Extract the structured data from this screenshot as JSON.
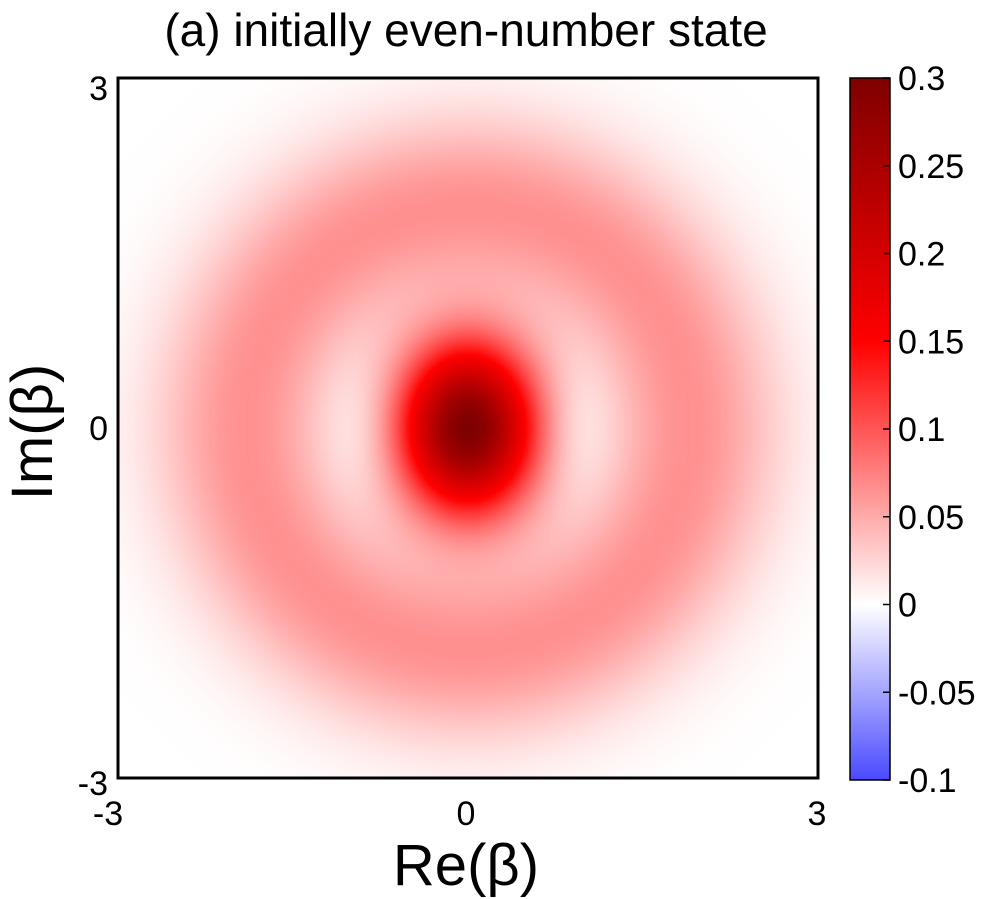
{
  "chart_data": {
    "type": "heatmap",
    "title": "(a)  initially even-number state",
    "xlabel": "Re(β)",
    "ylabel": "Im(β)",
    "xlim": [
      -3,
      3
    ],
    "ylim": [
      -3,
      3
    ],
    "x_ticks": [
      "-3",
      "0",
      "3"
    ],
    "y_ticks": [
      "-3",
      "0",
      "3"
    ],
    "colorbar": {
      "range": [
        -0.1,
        0.3
      ],
      "ticks": [
        "-0.1",
        "-0.05",
        "0",
        "0.05",
        "0.1",
        "0.15",
        "0.2",
        "0.25",
        "0.3"
      ],
      "colormap": [
        {
          "value": -0.1,
          "color": "#4a4aff"
        },
        {
          "value": 0.0,
          "color": "#ffffff"
        },
        {
          "value": 0.15,
          "color": "#ff0000"
        },
        {
          "value": 0.3,
          "color": "#7f0000"
        }
      ]
    },
    "features": [
      {
        "name": "central positive peak",
        "x": 0,
        "y": 0,
        "peak_value": 0.3
      },
      {
        "name": "negative lobe left",
        "x": -0.95,
        "y": 0,
        "min_value": -0.015
      },
      {
        "name": "negative lobe right",
        "x": 0.95,
        "y": 0,
        "min_value": -0.015
      },
      {
        "name": "positive ring",
        "radius": 1.9,
        "peak_value": 0.065
      }
    ]
  }
}
